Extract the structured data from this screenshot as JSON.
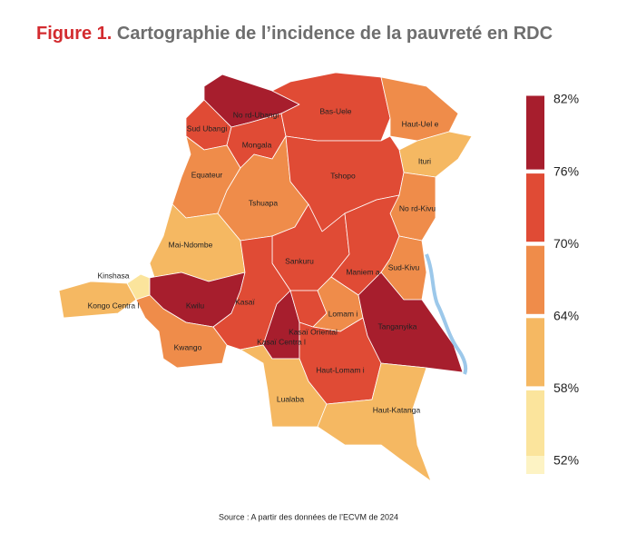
{
  "title_prefix": "Figure 1.",
  "title": "Cartographie de l’incidence de la pauvreté en RDC",
  "source": "Source : A partir des données de l’ECVM de 2024",
  "provinces": [
    {
      "name": "No rd-Ubangi",
      "value": 78
    },
    {
      "name": "Sud Ubangi",
      "value": 74
    },
    {
      "name": "Mongala",
      "value": 71
    },
    {
      "name": "Bas-Uele",
      "value": 71
    },
    {
      "name": "Haut-Uel e",
      "value": 68
    },
    {
      "name": "Ituri",
      "value": 63
    },
    {
      "name": "Equateur",
      "value": 68
    },
    {
      "name": "Tshuapa",
      "value": 67
    },
    {
      "name": "Tshopo",
      "value": 72
    },
    {
      "name": "No rd-Kivu",
      "value": 66
    },
    {
      "name": "Mai-Ndombe",
      "value": 63
    },
    {
      "name": "Sankuru",
      "value": 72
    },
    {
      "name": "Maniem a",
      "value": 71
    },
    {
      "name": "Sud-Kivu",
      "value": 65
    },
    {
      "name": "Kinshasa",
      "value": 55
    },
    {
      "name": "Kongo Centra l",
      "value": 62
    },
    {
      "name": "Kwilu",
      "value": 77
    },
    {
      "name": "Kwango",
      "value": 66
    },
    {
      "name": "Kasaï",
      "value": 74
    },
    {
      "name": "Kasaï Centra l",
      "value": 80
    },
    {
      "name": "Kasaï Oriental",
      "value": 73
    },
    {
      "name": "Lomam i",
      "value": 69
    },
    {
      "name": "Tanganyika",
      "value": 77
    },
    {
      "name": "Haut-Lomam i",
      "value": 73
    },
    {
      "name": "Lualaba",
      "value": 62
    },
    {
      "name": "Haut-Katanga",
      "value": 61
    }
  ],
  "legend": {
    "ticks": [
      {
        "value": 82,
        "label": "82%"
      },
      {
        "value": 76,
        "label": "76%"
      },
      {
        "value": 70,
        "label": "70%"
      },
      {
        "value": 64,
        "label": "64%"
      },
      {
        "value": 58,
        "label": "58%"
      },
      {
        "value": 52,
        "label": "52%"
      }
    ],
    "colors": [
      "#a71e2d",
      "#e04b35",
      "#ef8c4a",
      "#f5b862",
      "#fbe49c"
    ]
  }
}
